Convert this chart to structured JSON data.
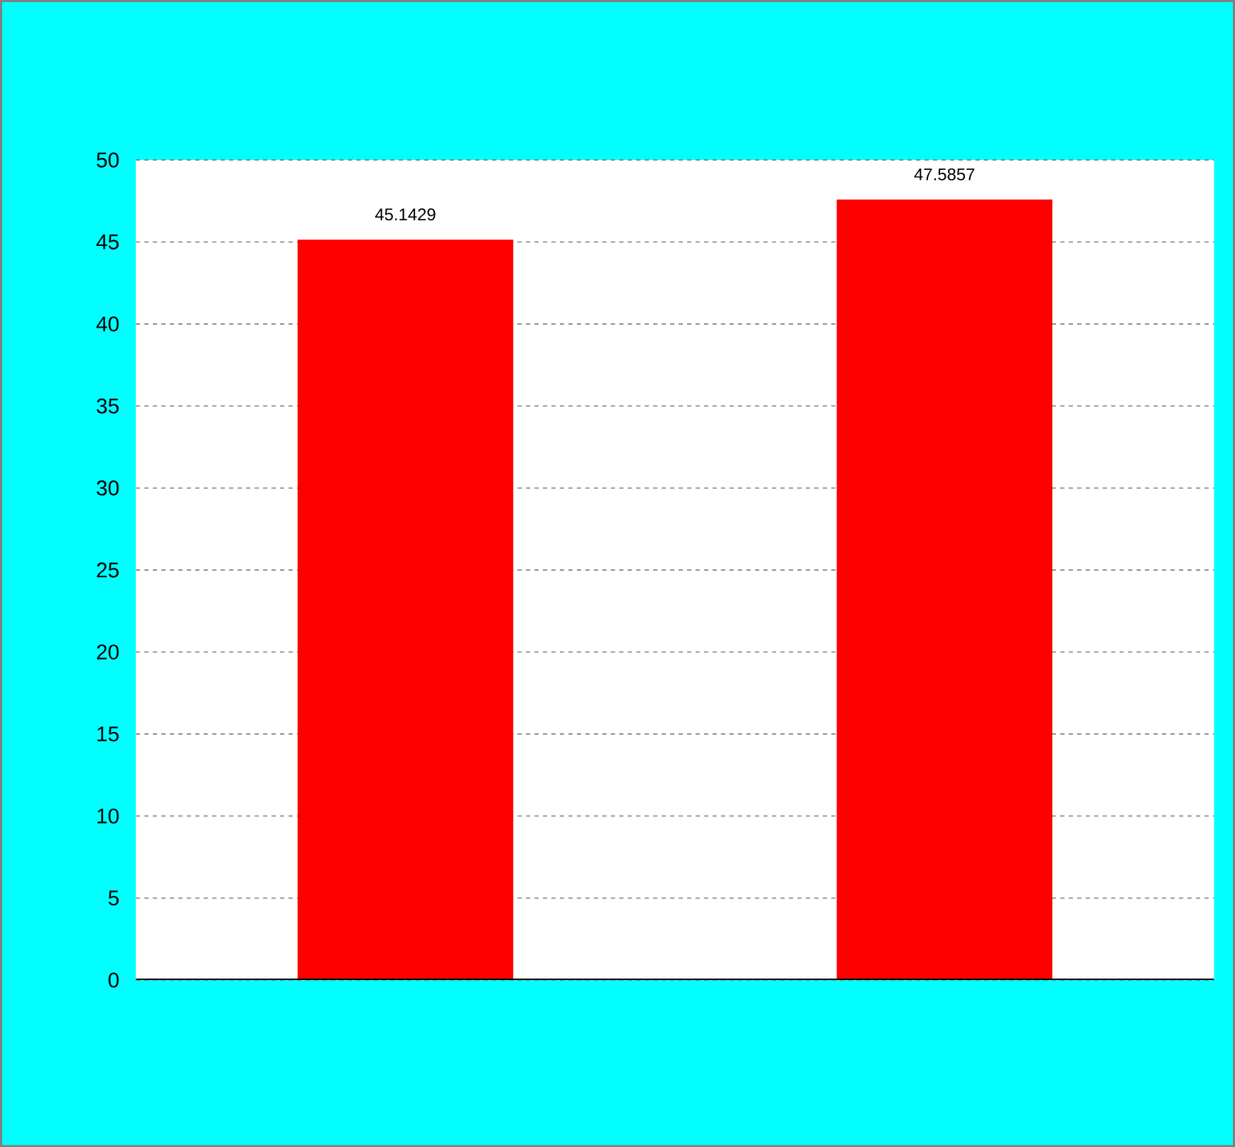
{
  "chart_data": {
    "type": "bar",
    "categories": [
      null,
      null
    ],
    "values": [
      45.1429,
      47.5857
    ],
    "color": "#ff0000",
    "value_labels": [
      "45.1429",
      "47.5857"
    ],
    "ylim": [
      0,
      50
    ],
    "yticks": [
      0,
      5,
      10,
      15,
      20,
      25,
      30,
      35,
      40,
      45,
      50
    ],
    "grid": "y",
    "tick_labels": "y"
  }
}
